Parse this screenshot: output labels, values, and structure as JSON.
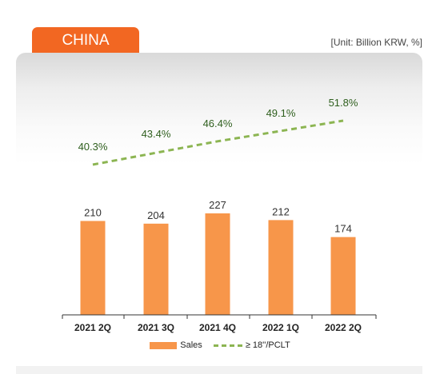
{
  "tab_title": "CHINA",
  "unit_label": "[Unit: Billion KRW, %]",
  "colors": {
    "tab": "#f26722",
    "bar": "#f7964a",
    "line": "#8cb552",
    "pct_label": "#2f5f1e"
  },
  "chart_data": {
    "type": "bar",
    "categories": [
      "2021 2Q",
      "2021 3Q",
      "2021 4Q",
      "2022 1Q",
      "2022 2Q"
    ],
    "series": [
      {
        "name": "Sales",
        "type": "bar",
        "values": [
          210,
          204,
          227,
          212,
          174
        ],
        "labels": [
          "210",
          "204",
          "227",
          "212",
          "174"
        ]
      },
      {
        "name": "≥ 18''/PCLT",
        "type": "line",
        "values": [
          40.3,
          43.4,
          46.4,
          49.1,
          51.8
        ],
        "labels": [
          "40.3%",
          "43.4%",
          "46.4%",
          "49.1%",
          "51.8%"
        ]
      }
    ],
    "legend": "bottom",
    "grid": false
  }
}
